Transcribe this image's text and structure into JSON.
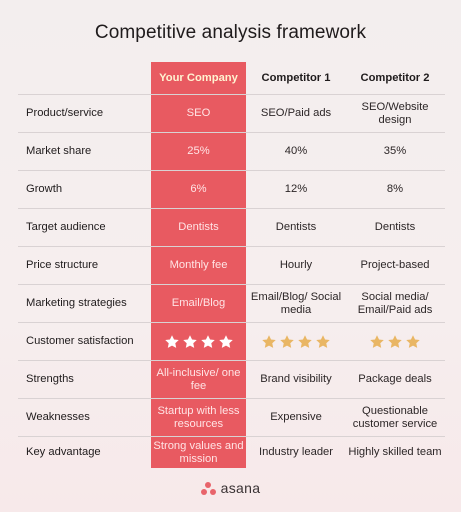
{
  "title": "Competitive analysis framework",
  "columns": [
    "",
    "Your Company",
    "Competitor 1",
    "Competitor 2"
  ],
  "rows": [
    {
      "label": "Product/service",
      "your_company": "SEO",
      "competitor_1": "SEO/Paid ads",
      "competitor_2": "SEO/Website design"
    },
    {
      "label": "Market share",
      "your_company": "25%",
      "competitor_1": "40%",
      "competitor_2": "35%"
    },
    {
      "label": "Growth",
      "your_company": "6%",
      "competitor_1": "12%",
      "competitor_2": "8%"
    },
    {
      "label": "Target audience",
      "your_company": "Dentists",
      "competitor_1": "Dentists",
      "competitor_2": "Dentists"
    },
    {
      "label": "Price structure",
      "your_company": "Monthly fee",
      "competitor_1": "Hourly",
      "competitor_2": "Project-based"
    },
    {
      "label": "Marketing strategies",
      "your_company": "Email/Blog",
      "competitor_1": "Email/Blog/ Social media",
      "competitor_2": "Social media/ Email/Paid ads"
    },
    {
      "label": "Customer satisfaction",
      "your_company_stars": 4,
      "competitor_1_stars": 4,
      "competitor_2_stars": 3
    },
    {
      "label": "Strengths",
      "your_company": "All-inclusive/ one fee",
      "competitor_1": "Brand visibility",
      "competitor_2": "Package deals"
    },
    {
      "label": "Weaknesses",
      "your_company": "Startup with less resources",
      "competitor_1": "Expensive",
      "competitor_2": "Questionable customer service"
    },
    {
      "label": "Key advantage",
      "your_company": "Strong values and mission",
      "competitor_1": "Industry leader",
      "competitor_2": "Highly skilled team"
    }
  ],
  "colors": {
    "highlight": "#e85a61",
    "header_highlight_text": "#fff3d1",
    "star_white": "#ffffff",
    "star_gold": "#e9b664",
    "brand_dot": "#e8646b"
  },
  "footer": {
    "brand": "asana"
  }
}
